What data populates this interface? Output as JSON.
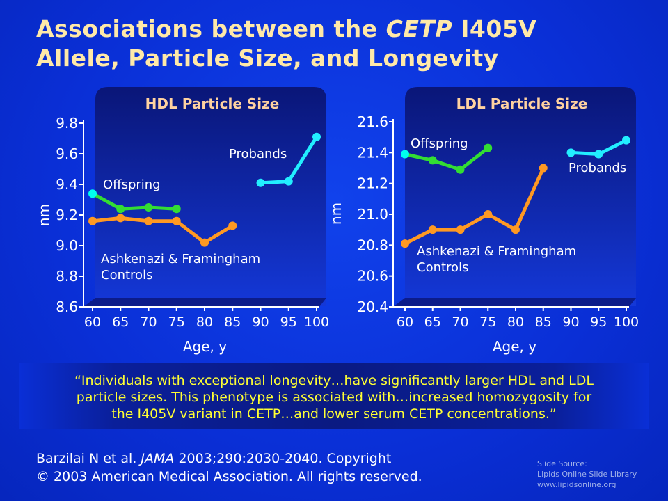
{
  "title": {
    "line1_pre": "Associations between the ",
    "line1_italic": "CETP",
    "line1_post": " I405V",
    "line2": "Allele, Particle Size, and Longevity"
  },
  "chart_data": [
    {
      "type": "line",
      "title": "HDL Particle Size",
      "xlabel": "Age, y",
      "ylabel": "nm",
      "x_ticks": [
        60,
        65,
        70,
        75,
        80,
        85,
        90,
        95,
        100
      ],
      "y_ticks": [
        "8.6",
        "8.8",
        "9.0",
        "9.2",
        "9.4",
        "9.6",
        "9.8"
      ],
      "ylim": [
        8.6,
        9.8
      ],
      "xlim": [
        60,
        100
      ],
      "series": [
        {
          "name": "Offspring",
          "color": "#33dd33",
          "marker": "#00ffee",
          "points": [
            [
              60,
              9.34
            ],
            [
              65,
              9.24
            ],
            [
              70,
              9.25
            ],
            [
              75,
              9.24
            ]
          ]
        },
        {
          "name": "Ashkenazi & Framingham Controls",
          "color": "#ff9922",
          "marker": "#ff9922",
          "points": [
            [
              60,
              9.16
            ],
            [
              65,
              9.18
            ],
            [
              70,
              9.16
            ],
            [
              75,
              9.16
            ],
            [
              80,
              9.02
            ],
            [
              85,
              9.13
            ]
          ]
        },
        {
          "name": "Probands",
          "color": "#22eeff",
          "marker": "#22eeff",
          "points": [
            [
              90,
              9.41
            ],
            [
              95,
              9.42
            ],
            [
              100,
              9.71
            ]
          ]
        }
      ],
      "labels": {
        "offspring": "Offspring",
        "controls_l1": "Ashkenazi & Framingham",
        "controls_l2": "Controls",
        "probands": "Probands"
      }
    },
    {
      "type": "line",
      "title": "LDL Particle Size",
      "xlabel": "Age, y",
      "ylabel": "nm",
      "x_ticks": [
        60,
        65,
        70,
        75,
        80,
        85,
        90,
        95,
        100
      ],
      "y_ticks": [
        "20.4",
        "20.6",
        "20.8",
        "21.0",
        "21.2",
        "21.4",
        "21.6"
      ],
      "ylim": [
        20.4,
        21.6
      ],
      "xlim": [
        60,
        100
      ],
      "series": [
        {
          "name": "Offspring",
          "color": "#33dd33",
          "marker": "#00ffee",
          "points": [
            [
              60,
              21.39
            ],
            [
              65,
              21.35
            ],
            [
              70,
              21.29
            ],
            [
              75,
              21.43
            ]
          ]
        },
        {
          "name": "Ashkenazi & Framingham Controls",
          "color": "#ff9922",
          "marker": "#ff9922",
          "points": [
            [
              60,
              20.81
            ],
            [
              65,
              20.9
            ],
            [
              70,
              20.9
            ],
            [
              75,
              21.0
            ],
            [
              80,
              20.9
            ],
            [
              85,
              21.3
            ]
          ]
        },
        {
          "name": "Probands",
          "color": "#22eeff",
          "marker": "#22eeff",
          "points": [
            [
              90,
              21.4
            ],
            [
              95,
              21.39
            ],
            [
              100,
              21.48
            ]
          ]
        }
      ],
      "labels": {
        "offspring": "Offspring",
        "controls_l1": "Ashkenazi & Framingham",
        "controls_l2": "Controls",
        "probands": "Probands"
      }
    }
  ],
  "quote": {
    "line1": "“Individuals with exceptional longevity…have significantly larger HDL and LDL",
    "line2": "particle sizes.  This phenotype is associated with…increased homozygosity for",
    "line3": "the I405V variant in CETP…and lower serum CETP concentrations.”"
  },
  "citation": {
    "line1_pre": "Barzilai N et al. ",
    "line1_italic": "JAMA",
    "line1_post": " 2003;290:2030-2040. Copyright",
    "line2": "© 2003 American Medical Association. All rights reserved."
  },
  "source": {
    "line1": "Slide Source:",
    "line2": "Lipids Online Slide Library",
    "line3": "www.lipidsonline.org"
  },
  "colors": {
    "background": "#0a2fd8",
    "title": "#ffe9a8",
    "chart_title": "#ffd2a0",
    "quote": "#ffff33"
  }
}
